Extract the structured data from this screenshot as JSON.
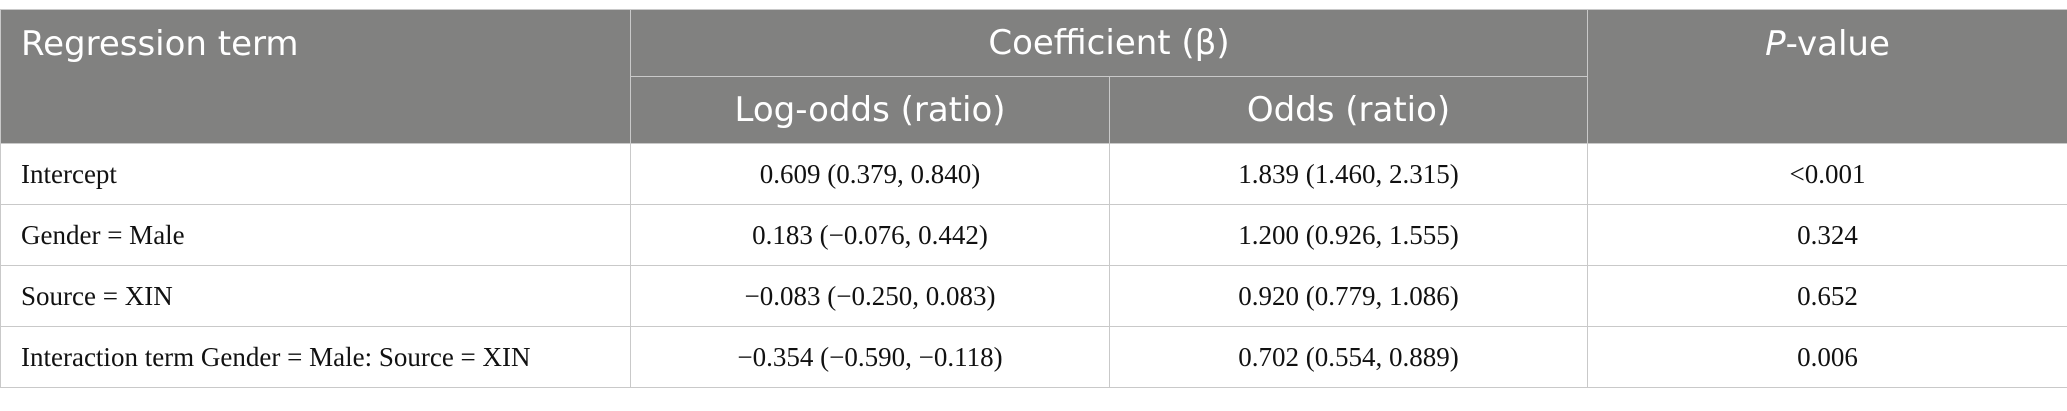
{
  "table": {
    "headers": {
      "regression_term": "Regression term",
      "coefficient_group": "Coefficient (β)",
      "p_value_italic": "P",
      "p_value_rest": "-value",
      "log_odds": "Log-odds (ratio)",
      "odds": "Odds (ratio)"
    },
    "rows": [
      {
        "term": "Intercept",
        "log_odds": "0.609 (0.379, 0.840)",
        "odds": "1.839 (1.460, 2.315)",
        "p_value": "<0.001"
      },
      {
        "term": "Gender = Male",
        "log_odds": "0.183 (−0.076, 0.442)",
        "odds": "1.200 (0.926, 1.555)",
        "p_value": "0.324"
      },
      {
        "term": "Source = XIN",
        "log_odds": "−0.083 (−0.250, 0.083)",
        "odds": "0.920 (0.779, 1.086)",
        "p_value": "0.652"
      },
      {
        "term": "Interaction term Gender = Male: Source = XIN",
        "log_odds": "−0.354 (−0.590, −0.118)",
        "odds": "0.702 (0.554, 0.889)",
        "p_value": "0.006"
      }
    ],
    "colors": {
      "header_bg": "#818180",
      "header_text": "#ffffff",
      "border": "#c9c9c9"
    }
  }
}
